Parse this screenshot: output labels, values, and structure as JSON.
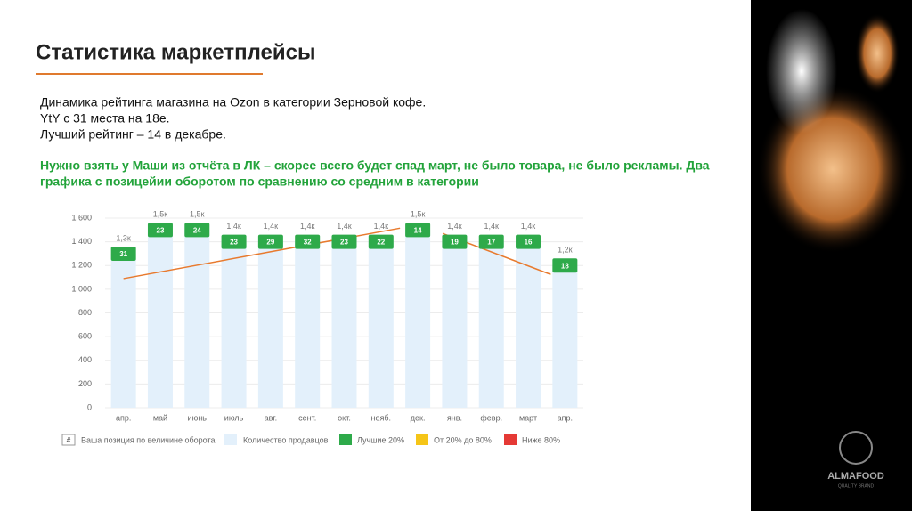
{
  "title": "Статистика маркетплейсы",
  "lines": [
    "Динамика рейтинга магазина на Ozon в категории Зерновой кофе.",
    "YtY с 31 места на 18е.",
    "Лучший рейтинг – 14 в декабре."
  ],
  "note": [
    "Нужно взять у Маши из отчёта в ЛК – скорее всего будет спад март, не было товара, не было рекламы. Два",
    "графика с позицейии оборотом по сравнению со средним в категории"
  ],
  "brand": {
    "name": "ALMAFOOD",
    "tagline": "QUALITY BRAND"
  },
  "chart_data": {
    "type": "bar",
    "categories": [
      "апр.",
      "май",
      "июнь",
      "июль",
      "авг.",
      "сент.",
      "окт.",
      "нояб.",
      "дек.",
      "янв.",
      "февр.",
      "март",
      "апр."
    ],
    "series": [
      {
        "name": "Количество продавцов",
        "color": "#e3f0fb",
        "values": [
          1300,
          1500,
          1500,
          1400,
          1400,
          1400,
          1400,
          1400,
          1500,
          1400,
          1400,
          1400,
          1200
        ],
        "value_labels": [
          "1,3к",
          "1,5к",
          "1,5к",
          "1,4к",
          "1,4к",
          "1,4к",
          "1,4к",
          "1,4к",
          "1,5к",
          "1,4к",
          "1,4к",
          "1,4к",
          "1,2к"
        ]
      }
    ],
    "positions": {
      "name": "Ваша позиция по величине оборота",
      "symbol": "#",
      "color": "#2eaa4a",
      "values": [
        31,
        23,
        24,
        23,
        29,
        32,
        23,
        22,
        14,
        19,
        17,
        16,
        18
      ]
    },
    "legend": [
      {
        "name": "Лучшие 20%",
        "color": "#2eaa4a"
      },
      {
        "name": "От 20% до 80%",
        "color": "#f5c518"
      },
      {
        "name": "Ниже 80%",
        "color": "#e53935"
      }
    ],
    "ylim": [
      0,
      1600
    ],
    "yticks": [
      0,
      200,
      400,
      600,
      800,
      {
        "value": 1000,
        "label": "1 000"
      },
      {
        "value": 1200,
        "label": "1 200"
      },
      {
        "value": 1400,
        "label": "1 400"
      },
      {
        "value": 1600,
        "label": "1 600"
      }
    ],
    "grid": true
  }
}
